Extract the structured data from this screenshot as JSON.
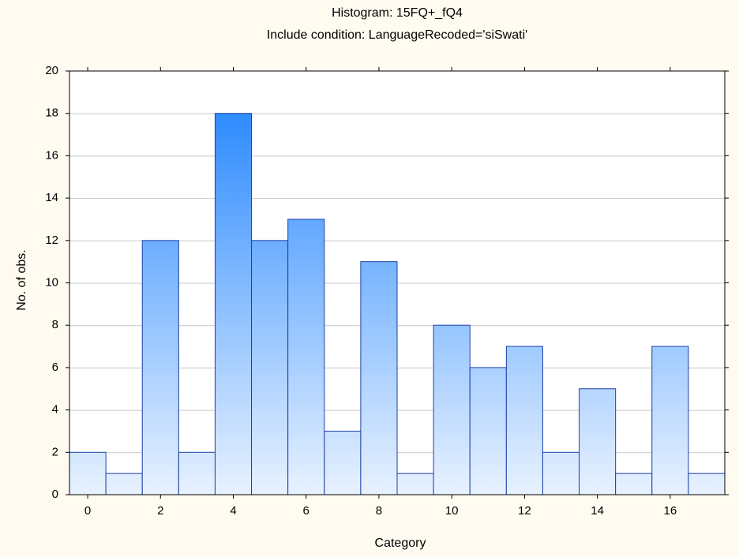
{
  "chart_data": {
    "type": "bar",
    "title": "Histogram: 15FQ+_fQ4",
    "subtitle": "Include condition: LanguageRecoded='siSwati'",
    "xlabel": "Category",
    "ylabel": "No. of obs.",
    "x": [
      0,
      1,
      2,
      3,
      4,
      5,
      6,
      7,
      8,
      9,
      10,
      11,
      12,
      13,
      14,
      15,
      16,
      17
    ],
    "values": [
      2,
      1,
      12,
      2,
      18,
      12,
      13,
      3,
      11,
      1,
      8,
      6,
      7,
      2,
      5,
      1,
      7,
      1
    ],
    "xlim": [
      -0.5,
      17.5
    ],
    "ylim": [
      0,
      20
    ],
    "xticks": [
      0,
      2,
      4,
      6,
      8,
      10,
      12,
      14,
      16
    ],
    "yticks": [
      0,
      2,
      4,
      6,
      8,
      10,
      12,
      14,
      16,
      18,
      20
    ],
    "grid": "horizontal",
    "legend": "none",
    "colors": {
      "page_background": "#fffbf0",
      "plot_background": "#ffffff",
      "bar_top": "#1a80ff",
      "bar_bottom": "#e8f2ff",
      "bar_edge": "#1c3fa8",
      "grid": "#c8c8c8"
    }
  }
}
